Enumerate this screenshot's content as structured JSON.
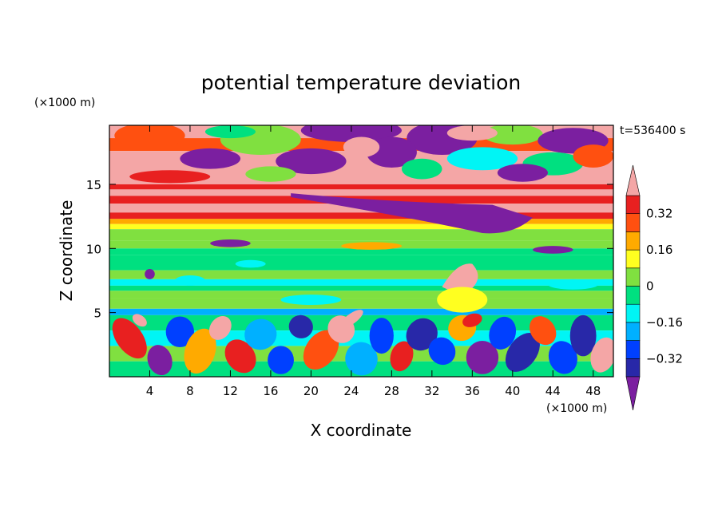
{
  "chart_data": {
    "type": "heatmap",
    "title": "potential temperature deviation",
    "xlabel": "X coordinate",
    "ylabel": "Z coordinate",
    "x_unit": "(×1000 m)",
    "y_unit": "(×1000 m)",
    "time_label": "t=536400 s",
    "xlim": [
      0,
      50
    ],
    "ylim": [
      0,
      19.6
    ],
    "x_ticks": [
      "4",
      "8",
      "12",
      "16",
      "20",
      "24",
      "28",
      "32",
      "36",
      "40",
      "44",
      "48"
    ],
    "y_ticks": [
      "5",
      "10",
      "15"
    ],
    "x_tick_values": [
      4,
      8,
      12,
      16,
      20,
      24,
      28,
      32,
      36,
      40,
      44,
      48
    ],
    "y_tick_values": [
      5,
      10,
      15
    ],
    "colorbar": {
      "levels": [
        -0.4,
        -0.32,
        -0.24,
        -0.16,
        -0.08,
        0,
        0.08,
        0.16,
        0.24,
        0.32,
        0.4
      ],
      "tick_labels": [
        "0.32",
        "0.16",
        "0",
        "−0.16",
        "−0.32"
      ],
      "tick_values": [
        0.32,
        0.16,
        0,
        -0.16,
        -0.32
      ],
      "colors": [
        "#7b1fa0",
        "#2828a8",
        "#0040ff",
        "#00b0ff",
        "#00f5f5",
        "#00e080",
        "#80e040",
        "#ffff20",
        "#ffaa00",
        "#ff5010",
        "#e82020",
        "#f4a6a6"
      ],
      "extend": "both"
    },
    "layers": [
      {
        "z_range": [
          17.5,
          19.6
        ],
        "value": "mixed: pink, purple, green"
      },
      {
        "z_range": [
          14.5,
          17.5
        ],
        "value": "pink with purple patches"
      },
      {
        "z_range": [
          12.8,
          14.5
        ],
        "value": "red / pink bands"
      },
      {
        "z_range": [
          11.5,
          12.8
        ],
        "value": "orange to yellow"
      },
      {
        "z_range": [
          9.5,
          11.5
        ],
        "value": "yellow-green"
      },
      {
        "z_range": [
          6.5,
          9.5
        ],
        "value": "green / cyan"
      },
      {
        "z_range": [
          4.8,
          6.5
        ],
        "value": "yellow-green near 0"
      },
      {
        "z_range": [
          0,
          4.8
        ],
        "value": "turbulent mix of all colors"
      }
    ],
    "features": [
      {
        "name": "purple tongue",
        "x_range": [
          18,
          42
        ],
        "z_range": [
          10.8,
          14.0
        ],
        "value": "< -0.4"
      },
      {
        "name": "pink plume",
        "x_range": [
          33,
          37
        ],
        "z_range": [
          6.3,
          8.8
        ],
        "value": "> 0.4"
      }
    ]
  }
}
